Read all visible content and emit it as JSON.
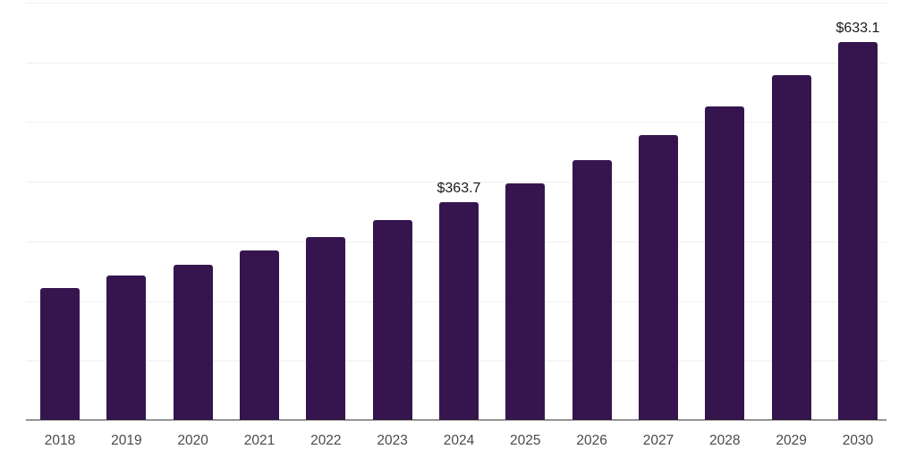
{
  "chart_data": {
    "type": "bar",
    "title": "",
    "xlabel": "",
    "ylabel": "",
    "categories": [
      "2018",
      "2019",
      "2020",
      "2021",
      "2022",
      "2023",
      "2024",
      "2025",
      "2026",
      "2027",
      "2028",
      "2029",
      "2030"
    ],
    "values": [
      220,
      241,
      260,
      283,
      306,
      335,
      363.7,
      396,
      435,
      476,
      524,
      577,
      633.1
    ],
    "data_labels": [
      "",
      "",
      "",
      "",
      "",
      "",
      "$363.7",
      "",
      "",
      "",
      "",
      "",
      "$633.1"
    ],
    "ylim": [
      0,
      700
    ],
    "gridline_step": 100,
    "grid": "horizontal",
    "legend_position": "none",
    "y_tick_labels_visible": false,
    "bar_color": "#36154E",
    "axis_line_color": "#3C3C3C",
    "gridline_color": "#EFEFEF",
    "tick_label_color": "#4A4A4A",
    "data_label_color": "#1A1A1A",
    "background_color": "#FFFFFF"
  }
}
